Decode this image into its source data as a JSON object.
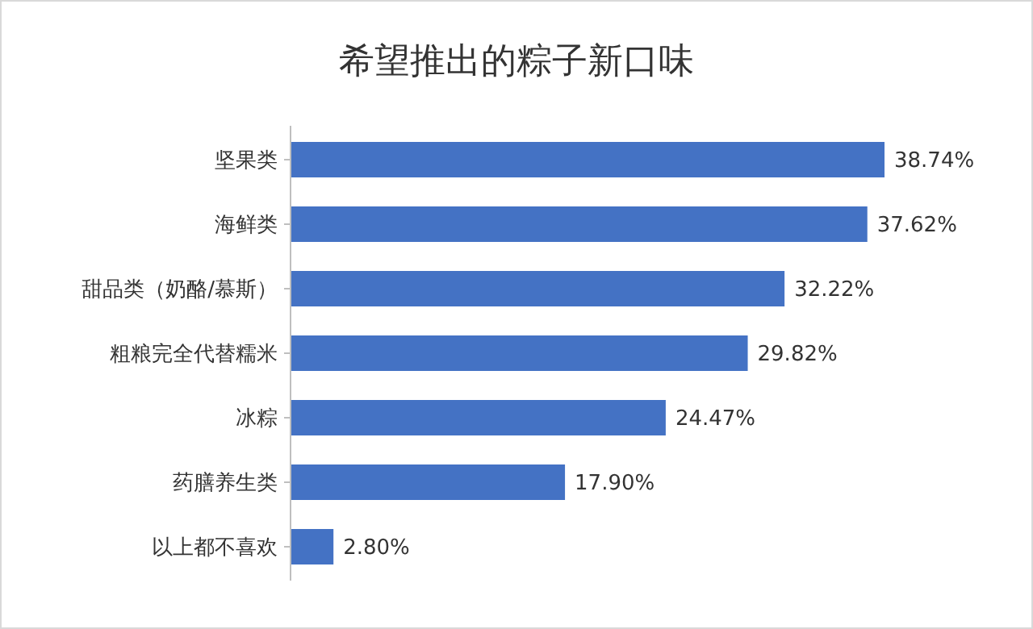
{
  "chart_data": {
    "type": "bar",
    "orientation": "horizontal",
    "title": "希望推出的粽子新口味",
    "categories": [
      "坚果类",
      "海鲜类",
      "甜品类（奶酪/慕斯）",
      "粗粮完全代替糯米",
      "冰粽",
      "药膳养生类",
      "以上都不喜欢"
    ],
    "values": [
      38.74,
      37.62,
      32.22,
      29.82,
      24.47,
      17.9,
      2.8
    ],
    "value_labels": [
      "38.74%",
      "37.62%",
      "32.22%",
      "29.82%",
      "24.47%",
      "17.90%",
      "2.80%"
    ],
    "color": "#4472c4"
  }
}
